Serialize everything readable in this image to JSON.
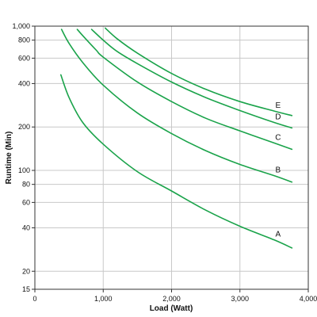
{
  "chart_data": {
    "type": "line",
    "title": "",
    "xlabel": "Load (Watt)",
    "ylabel": "Runtime (Min)",
    "xlim": [
      0,
      4000
    ],
    "ylim": [
      15,
      1000
    ],
    "y_scale": "log",
    "grid": true,
    "line_color": "#1aa34a",
    "x_ticks": [
      0,
      1000,
      2000,
      3000,
      4000
    ],
    "x_tick_labels": [
      "0",
      "1,000",
      "2,000",
      "3,000",
      "4,000"
    ],
    "y_ticks": [
      15,
      20,
      40,
      60,
      80,
      100,
      200,
      400,
      600,
      800,
      1000
    ],
    "y_tick_labels": [
      "15",
      "20",
      "40",
      "60",
      "80",
      "100",
      "200",
      "400",
      "600",
      "800",
      "1,000"
    ],
    "series": [
      {
        "name": "A",
        "x": [
          380,
          500,
          700,
          1000,
          1500,
          2000,
          2500,
          3000,
          3500,
          3760
        ],
        "y": [
          460,
          320,
          215,
          152,
          98,
          72,
          53,
          41,
          33,
          29
        ]
      },
      {
        "name": "B",
        "x": [
          390,
          500,
          700,
          1000,
          1500,
          2000,
          2500,
          3000,
          3500,
          3760
        ],
        "y": [
          950,
          760,
          560,
          390,
          250,
          180,
          137,
          110,
          92,
          83
        ]
      },
      {
        "name": "C",
        "x": [
          620,
          700,
          900,
          1000,
          1500,
          2000,
          2500,
          3000,
          3500,
          3760
        ],
        "y": [
          950,
          860,
          680,
          610,
          410,
          300,
          230,
          188,
          155,
          140
        ]
      },
      {
        "name": "D",
        "x": [
          830,
          1000,
          1200,
          1500,
          2000,
          2500,
          3000,
          3500,
          3760
        ],
        "y": [
          950,
          800,
          670,
          550,
          410,
          320,
          260,
          215,
          197
        ]
      },
      {
        "name": "E",
        "x": [
          1030,
          1200,
          1500,
          2000,
          2500,
          3000,
          3500,
          3760
        ],
        "y": [
          970,
          820,
          650,
          470,
          365,
          300,
          258,
          240
        ]
      }
    ]
  }
}
